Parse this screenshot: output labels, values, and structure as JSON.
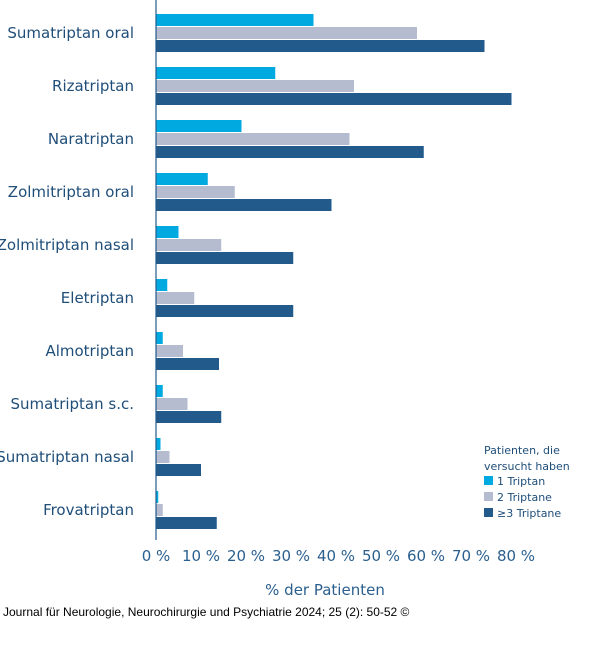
{
  "chart_data": {
    "type": "bar",
    "orientation": "horizontal",
    "categories": [
      "Sumatriptan oral",
      "Rizatriptan",
      "Naratriptan",
      "Zolmitriptan oral",
      "Zolmitriptan nasal",
      "Eletriptan",
      "Almotriptan",
      "Sumatriptan s.c.",
      "Sumatriptan nasal",
      "Frovatriptan"
    ],
    "series": [
      {
        "name": "1 Triptan",
        "color": "#00a9e0",
        "values": [
          35,
          26.5,
          19,
          11.5,
          5,
          2.5,
          1.5,
          1.5,
          1,
          0.5
        ]
      },
      {
        "name": "2 Triptane",
        "color": "#b5bccf",
        "values": [
          58,
          44,
          43,
          17.5,
          14.5,
          8.5,
          6,
          7,
          3,
          1.5
        ]
      },
      {
        "name": "≥3 Triptane",
        "color": "#235a8c",
        "values": [
          73,
          79,
          59.5,
          39,
          30.5,
          30.5,
          14,
          14.5,
          10,
          13.5
        ]
      }
    ],
    "xlim": [
      0,
      80
    ],
    "x_ticks": [
      "0 %",
      "10 %",
      "20 %",
      "30 %",
      "40 %",
      "50 %",
      "60 %",
      "70 %",
      "80 %"
    ],
    "x_tick_values": [
      0,
      10,
      20,
      30,
      40,
      50,
      60,
      70,
      80
    ],
    "xlabel": "% der Patienten",
    "ylabel": "",
    "title": "",
    "grid": false,
    "legend": {
      "title_lines": [
        "Patienten, die",
        "versucht haben"
      ],
      "placement": "bottom-right"
    },
    "axis_color": "#235a8c"
  },
  "source": "Journal für Neurologie, Neurochirurgie und Psychiatrie 2024; 25 (2): 50-52 ©"
}
